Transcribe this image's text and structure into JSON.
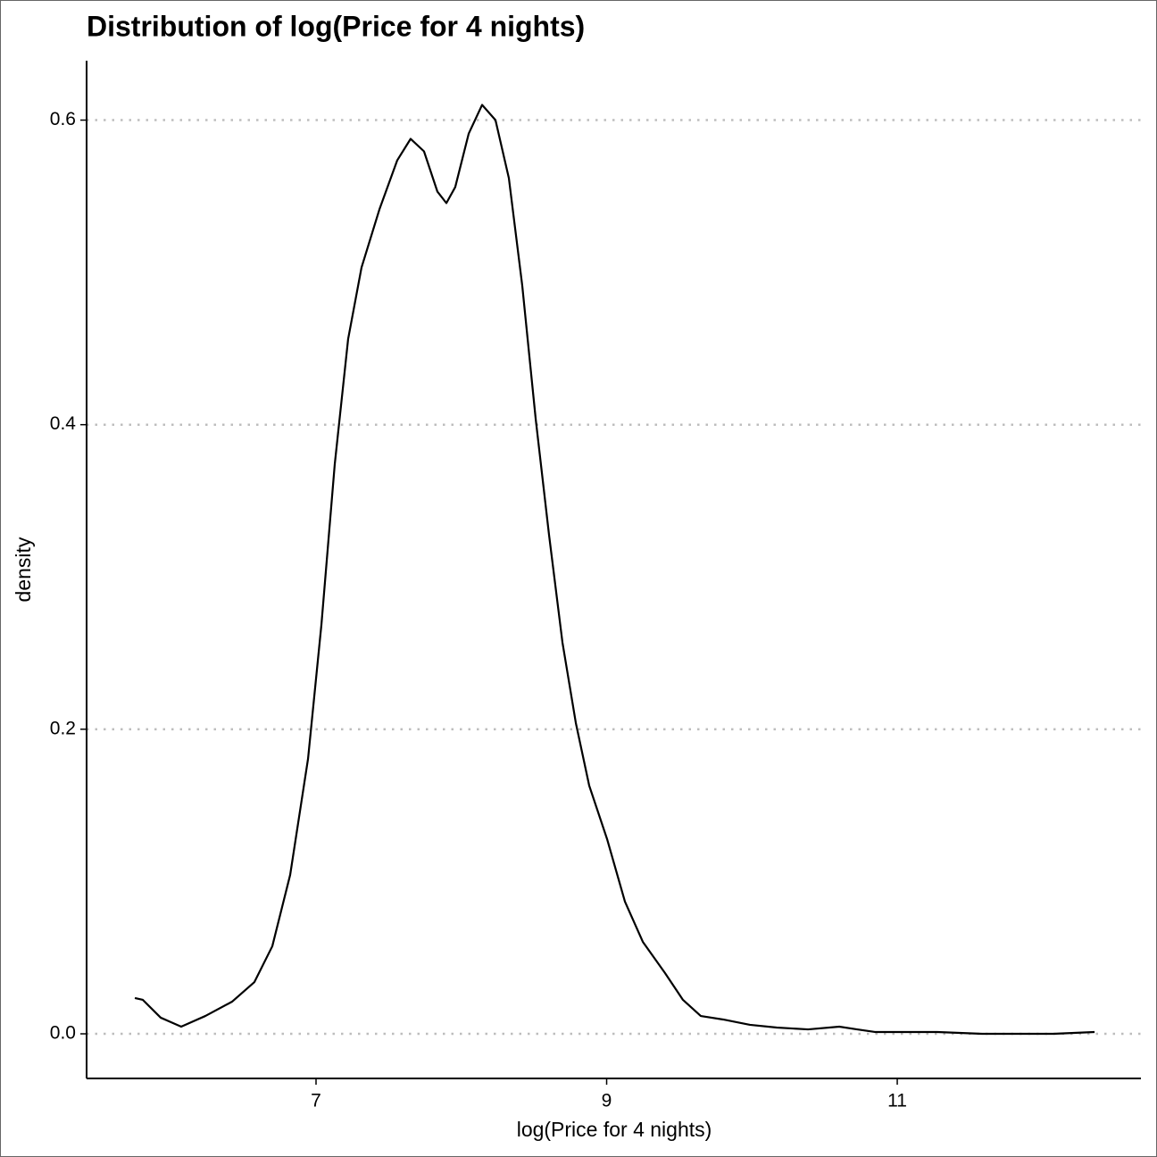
{
  "chart_data": {
    "type": "line",
    "title": "Distribution of log(Price for 4 nights)",
    "x_label": "log(Price for 4 nights)",
    "y_label": "density",
    "x": [
      5.753,
      5.808,
      5.931,
      6.072,
      6.238,
      6.422,
      6.576,
      6.699,
      6.822,
      6.945,
      7.037,
      7.129,
      7.221,
      7.313,
      7.436,
      7.559,
      7.651,
      7.743,
      7.835,
      7.897,
      7.958,
      8.051,
      8.143,
      8.235,
      8.327,
      8.419,
      8.512,
      8.604,
      8.696,
      8.788,
      8.88,
      9.003,
      9.126,
      9.249,
      9.402,
      9.525,
      9.648,
      9.802,
      9.986,
      10.171,
      10.386,
      10.601,
      10.724,
      10.846,
      11.276,
      11.584,
      12.075,
      12.358
    ],
    "series": [
      {
        "color": "#000000",
        "values": [
          0.0235,
          0.0223,
          0.0106,
          0.0047,
          0.0117,
          0.0211,
          0.034,
          0.0575,
          0.1044,
          0.1806,
          0.2686,
          0.3742,
          0.4563,
          0.5032,
          0.5413,
          0.5736,
          0.5877,
          0.5795,
          0.5531,
          0.5455,
          0.556,
          0.5912,
          0.61,
          0.6,
          0.5619,
          0.4915,
          0.4035,
          0.3273,
          0.2569,
          0.2041,
          0.163,
          0.1279,
          0.0868,
          0.0604,
          0.0399,
          0.0223,
          0.0117,
          0.0094,
          0.0059,
          0.0041,
          0.0029,
          0.0047,
          0.0029,
          0.0012,
          0.0012,
          0,
          0,
          0.0012
        ]
      }
    ],
    "xlim": [
      5.421,
      12.677
    ],
    "ylim": [
      -0.0293,
      0.639
    ],
    "xticks": [
      7,
      9,
      11
    ],
    "yticks": [
      {
        "value": 0,
        "label": "0.0"
      },
      0.2,
      0.4,
      0.6
    ],
    "grid": true
  }
}
